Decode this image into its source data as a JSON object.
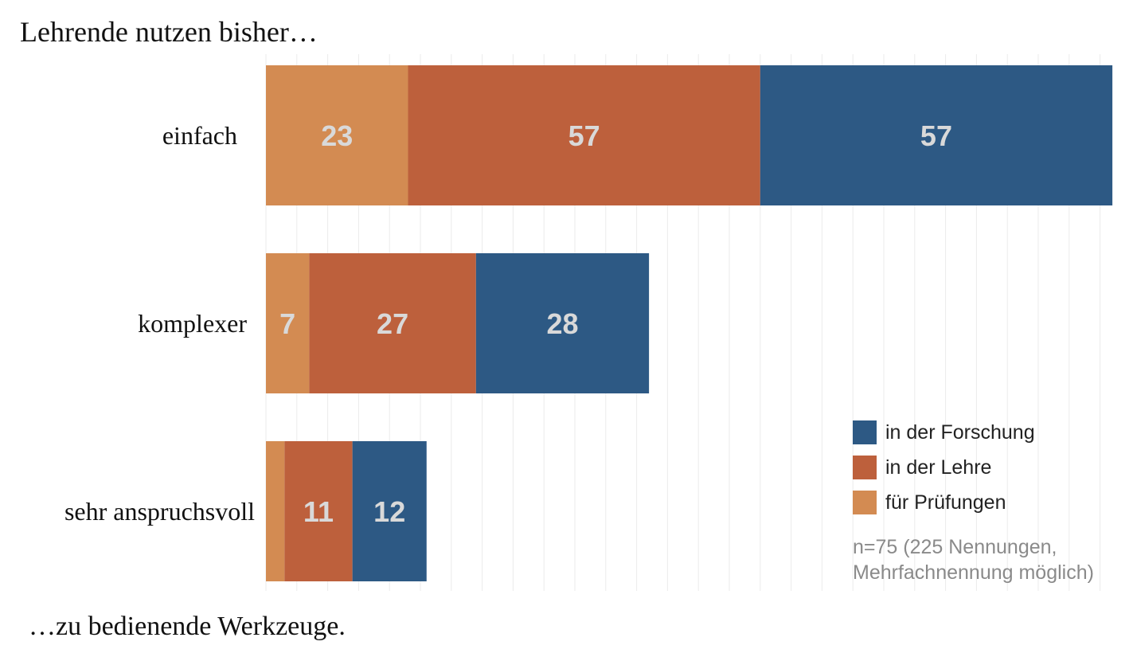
{
  "chart_data": {
    "type": "bar",
    "orientation": "horizontal",
    "stacked": true,
    "title": "Lehrende nutzen bisher…",
    "footer": "…zu bedienende Werkzeuge.",
    "categories": [
      "einfach",
      "komplexer",
      "sehr anspruchsvoll"
    ],
    "series": [
      {
        "name": "für Prüfungen",
        "color": "#d38b52",
        "values": [
          23,
          7,
          3
        ]
      },
      {
        "name": "in der Lehre",
        "color": "#bd603c",
        "values": [
          57,
          27,
          11
        ]
      },
      {
        "name": "in der Forschung",
        "color": "#2d5984",
        "values": [
          57,
          28,
          12
        ]
      }
    ],
    "legend_order": [
      "in der Forschung",
      "in der Lehre",
      "für Prüfungen"
    ],
    "legend_position": "bottom-right",
    "note_lines": [
      "n=75 (225 Nennungen,",
      "Mehrfachnennung möglich)"
    ],
    "label_color": "#d9d9d9",
    "note_color": "#8a8a8a",
    "xlim": [
      0,
      137
    ],
    "grid": true
  }
}
